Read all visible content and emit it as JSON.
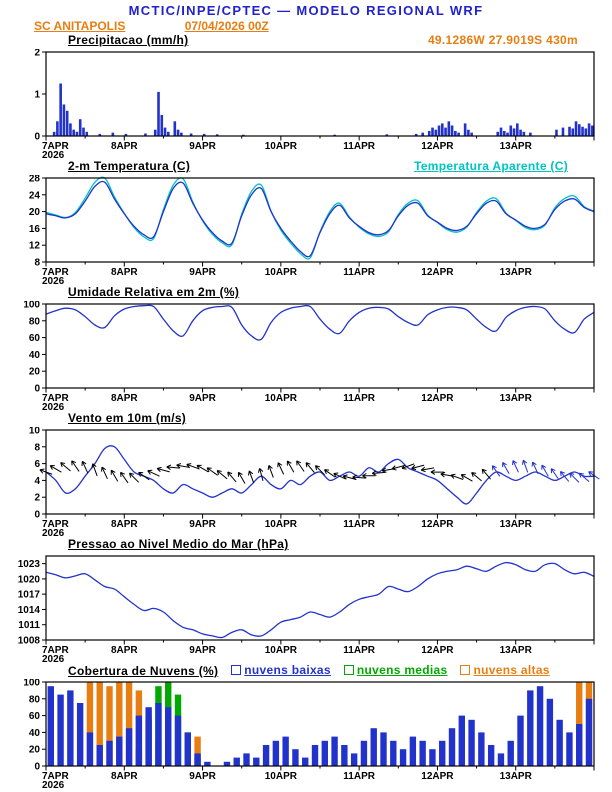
{
  "header": {
    "title": "MCTIC/INPE/CPTEC — MODELO REGIONAL WRF",
    "station": "SC ANITAPOLIS",
    "run": "07/04/2026 00Z",
    "coords": "49.1286W 27.9019S 430m"
  },
  "colors": {
    "blue": "#2222cc",
    "orange": "#e87d12",
    "line_blue": "#2233cc",
    "cyan": "#00c3c3",
    "green": "#00a800",
    "black": "#000000"
  },
  "xaxis": {
    "day_labels": [
      "7APR",
      "8APR",
      "9APR",
      "10APR",
      "11APR",
      "12APR",
      "13APR"
    ],
    "year_label": "2026",
    "hours_total": 168,
    "step_hours": 3
  },
  "chart_data": [
    {
      "id": "precip",
      "type": "bar",
      "title": "Precipitacao (mm/h)",
      "ylim": [
        0,
        2
      ],
      "yticks": [
        0,
        1,
        2
      ],
      "color": "#2233cc",
      "values_sparse": {
        "2": 0.1,
        "3": 0.35,
        "4": 1.25,
        "5": 0.75,
        "6": 0.6,
        "7": 0.3,
        "8": 0.15,
        "9": 0.1,
        "10": 0.4,
        "11": 0.2,
        "12": 0.1,
        "16": 0.05,
        "20": 0.08,
        "24": 0.05,
        "30": 0.06,
        "33": 0.15,
        "34": 1.05,
        "35": 0.5,
        "36": 0.2,
        "37": 0.1,
        "39": 0.35,
        "40": 0.15,
        "41": 0.08,
        "44": 0.06,
        "48": 0.05,
        "52": 0.04,
        "60": 0.03,
        "88": 0.03,
        "104": 0.04,
        "113": 0.05,
        "115": 0.08,
        "117": 0.12,
        "118": 0.2,
        "119": 0.15,
        "120": 0.25,
        "121": 0.3,
        "122": 0.2,
        "123": 0.35,
        "124": 0.25,
        "125": 0.12,
        "126": 0.08,
        "128": 0.3,
        "129": 0.15,
        "130": 0.08,
        "138": 0.1,
        "139": 0.2,
        "140": 0.12,
        "141": 0.08,
        "142": 0.25,
        "143": 0.18,
        "144": 0.3,
        "145": 0.15,
        "146": 0.1,
        "148": 0.08,
        "156": 0.15,
        "158": 0.2,
        "160": 0.22,
        "161": 0.18,
        "162": 0.35,
        "163": 0.28,
        "164": 0.22,
        "165": 0.18,
        "166": 0.3,
        "167": 0.25
      }
    },
    {
      "id": "temp",
      "type": "line",
      "title": "2-m Temperatura (C)",
      "right_label": "Temperatura Aparente (C)",
      "ylim": [
        8,
        28
      ],
      "yticks": [
        8,
        12,
        16,
        20,
        24,
        28
      ],
      "series": [
        {
          "name": "2-m Temperatura (C)",
          "color": "#2233cc",
          "values": [
            19.5,
            19,
            18.5,
            19.5,
            22.5,
            26,
            27,
            23,
            19.5,
            16.5,
            14.5,
            14,
            20,
            25.5,
            26.8,
            22,
            18,
            15,
            13,
            12.5,
            19,
            24,
            25.5,
            20,
            16,
            13,
            10.5,
            9.5,
            15,
            19.5,
            21.5,
            18.5,
            16.5,
            15,
            14.5,
            15.5,
            19,
            21.5,
            22,
            19,
            17.5,
            16,
            15.5,
            16.5,
            19.5,
            22,
            22.5,
            19.5,
            18,
            16.5,
            16,
            17,
            20.5,
            22.5,
            23,
            21,
            20
          ]
        },
        {
          "name": "Temperatura Aparente (C)",
          "color": "#00c3c3",
          "values": [
            19.8,
            19.2,
            18.6,
            19.8,
            23.2,
            27,
            28,
            23.5,
            19.6,
            16.2,
            14,
            13.6,
            20.5,
            26.3,
            27.8,
            22.3,
            17.8,
            14.6,
            12.6,
            12.1,
            19.4,
            24.8,
            26.3,
            20.1,
            15.6,
            12.5,
            10,
            9,
            15.2,
            20,
            22,
            18.7,
            16.3,
            14.7,
            14.1,
            15.2,
            19.3,
            22,
            22.6,
            19.2,
            17.4,
            15.7,
            15.1,
            16.3,
            19.8,
            22.5,
            23.1,
            19.7,
            17.9,
            16.2,
            15.7,
            16.8,
            20.9,
            23.1,
            23.7,
            21.2,
            20.1
          ]
        }
      ]
    },
    {
      "id": "humid",
      "type": "line",
      "title": "Umidade Relativa em 2m (%)",
      "ylim": [
        0,
        100
      ],
      "yticks": [
        0,
        20,
        40,
        60,
        80,
        100
      ],
      "series": [
        {
          "name": "Umidade Relativa em 2m (%)",
          "color": "#2233cc",
          "values": [
            88,
            92,
            95,
            93,
            85,
            75,
            72,
            86,
            94,
            97,
            98,
            97,
            82,
            68,
            62,
            80,
            92,
            96,
            97,
            96,
            75,
            62,
            58,
            78,
            90,
            95,
            97,
            97,
            82,
            70,
            65,
            80,
            90,
            95,
            96,
            94,
            85,
            78,
            75,
            87,
            93,
            96,
            96,
            93,
            82,
            72,
            68,
            84,
            92,
            96,
            97,
            94,
            80,
            70,
            66,
            82,
            90
          ]
        }
      ]
    },
    {
      "id": "wind",
      "type": "line",
      "title": "Vento em 10m (m/s)",
      "ylim": [
        0,
        10
      ],
      "yticks": [
        0,
        2,
        4,
        6,
        8,
        10
      ],
      "series": [
        {
          "name": "Vento em 10m (m/s)",
          "color": "#2233cc",
          "values": [
            5,
            4,
            2.5,
            3,
            4.5,
            6,
            7.8,
            8,
            6.5,
            5,
            4.5,
            4,
            3,
            2.5,
            3.5,
            3,
            2.5,
            2,
            2.5,
            3,
            2.5,
            3.5,
            4.5,
            3.5,
            3,
            4,
            3.5,
            4.5,
            5,
            4,
            4.5,
            5,
            4.5,
            5.5,
            5,
            6,
            6.5,
            5.5,
            5,
            4.5,
            4,
            3,
            2,
            1.2,
            2.5,
            4,
            5,
            4.5,
            4,
            4.5,
            5,
            4.5,
            4,
            4.5,
            5,
            4.5,
            4.5
          ]
        }
      ],
      "arrows": {
        "y_value": 5,
        "color": "#000000",
        "alt_color": "#2233cc",
        "alt_from_index": 46,
        "dirs": [
          200,
          210,
          220,
          235,
          245,
          250,
          245,
          240,
          235,
          225,
          215,
          205,
          195,
          185,
          190,
          200,
          210,
          215,
          220,
          230,
          240,
          250,
          255,
          250,
          245,
          240,
          235,
          230,
          225,
          215,
          205,
          195,
          185,
          180,
          175,
          170,
          165,
          160,
          165,
          170,
          180,
          190,
          200,
          210,
          220,
          230,
          235,
          240,
          245,
          250,
          245,
          240,
          235,
          230,
          225,
          220,
          215
        ]
      }
    },
    {
      "id": "press",
      "type": "line",
      "title": "Pressao ao Nivel Medio do Mar (hPa)",
      "ylim": [
        1008,
        1024.5
      ],
      "yticks": [
        1008,
        1011,
        1014,
        1017,
        1020,
        1023
      ],
      "series": [
        {
          "name": "Pressao ao Nivel Medio do Mar (hPa)",
          "color": "#2233cc",
          "values": [
            1021.3,
            1020.8,
            1020.2,
            1020.6,
            1021,
            1019.8,
            1018.5,
            1018,
            1016.5,
            1015,
            1013.8,
            1014.2,
            1013.5,
            1011.8,
            1010.5,
            1010,
            1009.2,
            1008.8,
            1008.5,
            1009.5,
            1010,
            1009,
            1008.8,
            1010,
            1011.5,
            1012,
            1012.5,
            1013.5,
            1013,
            1012.5,
            1013.5,
            1015,
            1016,
            1016.5,
            1017,
            1018.5,
            1018,
            1017.5,
            1018.5,
            1020,
            1021,
            1021.5,
            1021.8,
            1022.5,
            1022,
            1021.5,
            1022.5,
            1023.2,
            1022.8,
            1021.8,
            1021.5,
            1022.8,
            1023,
            1021.8,
            1021,
            1021.3,
            1020.5
          ]
        }
      ]
    },
    {
      "id": "clouds",
      "type": "bar",
      "title": "Cobertura de Nuvens (%)",
      "ylim": [
        0,
        100
      ],
      "yticks": [
        0,
        20,
        40,
        60,
        80,
        100
      ],
      "legend": [
        {
          "label": "nuvens baixas",
          "color": "#2233cc"
        },
        {
          "label": "nuvens medias",
          "color": "#00a800"
        },
        {
          "label": "nuvens altas",
          "color": "#e87d12"
        }
      ],
      "series": [
        {
          "name": "nuvens altas",
          "color": "#e87d12",
          "values": [
            0,
            0,
            0,
            0,
            100,
            100,
            95,
            100,
            100,
            90,
            60,
            30,
            0,
            0,
            0,
            35,
            0,
            0,
            0,
            0,
            0,
            0,
            0,
            0,
            0,
            0,
            0,
            0,
            0,
            0,
            0,
            0,
            0,
            0,
            0,
            0,
            0,
            0,
            0,
            0,
            0,
            0,
            0,
            0,
            0,
            0,
            0,
            0,
            0,
            0,
            0,
            0,
            0,
            0,
            100,
            100,
            90
          ]
        },
        {
          "name": "nuvens medias",
          "color": "#00a800",
          "values": [
            0,
            0,
            0,
            0,
            0,
            0,
            0,
            0,
            0,
            20,
            55,
            95,
            100,
            85,
            40,
            10,
            0,
            0,
            0,
            0,
            0,
            0,
            0,
            0,
            0,
            0,
            0,
            0,
            0,
            0,
            0,
            0,
            0,
            0,
            0,
            0,
            0,
            0,
            0,
            0,
            0,
            0,
            0,
            0,
            0,
            0,
            0,
            0,
            0,
            0,
            0,
            0,
            0,
            0,
            0,
            0,
            0
          ]
        },
        {
          "name": "nuvens baixas",
          "color": "#2233cc",
          "values": [
            95,
            85,
            90,
            75,
            40,
            25,
            30,
            35,
            45,
            60,
            70,
            75,
            70,
            60,
            40,
            15,
            5,
            0,
            5,
            10,
            15,
            10,
            25,
            30,
            35,
            20,
            10,
            25,
            30,
            35,
            25,
            15,
            30,
            45,
            40,
            30,
            20,
            35,
            30,
            20,
            30,
            45,
            60,
            55,
            40,
            25,
            15,
            30,
            60,
            90,
            95,
            80,
            55,
            40,
            50,
            80,
            70
          ]
        }
      ]
    }
  ]
}
